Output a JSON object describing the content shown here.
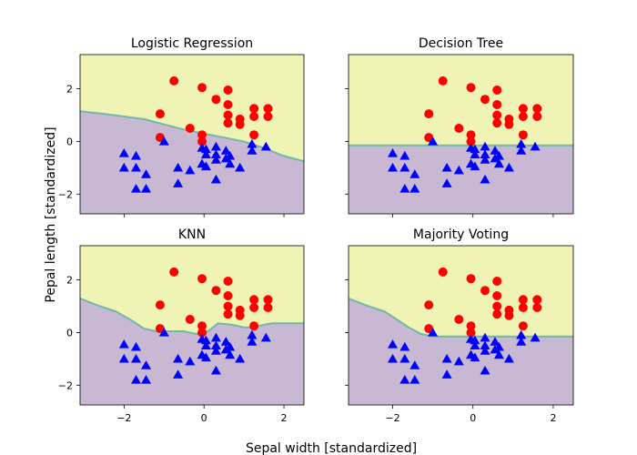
{
  "figure": {
    "xlabel": "Sepal width [standardized]",
    "ylabel": "Pepal length [standardized]"
  },
  "colors": {
    "region_class_1": "#c9b8d4",
    "region_class_0": "#eff4b5",
    "boundary_line": "#62b39e",
    "marker_class_0": "#ff0000",
    "marker_class_1": "#0000ff"
  },
  "chart_data": [
    {
      "type": "scatter",
      "title": "Logistic Regression",
      "xlim": [
        -3.1,
        2.5
      ],
      "ylim": [
        -2.75,
        3.3
      ],
      "xticks": [
        -2,
        0,
        2
      ],
      "yticks": [
        -2,
        0,
        2
      ],
      "show_x_ticklabels": false,
      "show_y_ticklabels": true,
      "boundary": [
        [
          -3.1,
          1.15
        ],
        [
          -2.5,
          1.05
        ],
        [
          -2.0,
          0.95
        ],
        [
          -1.5,
          0.85
        ],
        [
          -1.0,
          0.65
        ],
        [
          -0.5,
          0.45
        ],
        [
          0.0,
          0.3
        ],
        [
          0.5,
          0.15
        ],
        [
          1.0,
          0.0
        ],
        [
          1.5,
          -0.25
        ],
        [
          2.0,
          -0.55
        ],
        [
          2.5,
          -0.75
        ]
      ]
    },
    {
      "type": "scatter",
      "title": "Decision Tree",
      "xlim": [
        -3.1,
        2.5
      ],
      "ylim": [
        -2.75,
        3.3
      ],
      "xticks": [
        -2,
        0,
        2
      ],
      "yticks": [
        -2,
        0,
        2
      ],
      "show_x_ticklabels": false,
      "show_y_ticklabels": false,
      "boundary": [
        [
          -3.1,
          -0.15
        ],
        [
          2.5,
          -0.15
        ]
      ]
    },
    {
      "type": "scatter",
      "title": "KNN",
      "xlim": [
        -3.1,
        2.5
      ],
      "ylim": [
        -2.75,
        3.3
      ],
      "xticks": [
        -2,
        0,
        2
      ],
      "yticks": [
        -2,
        0,
        2
      ],
      "show_x_ticklabels": true,
      "show_y_ticklabels": true,
      "boundary": [
        [
          -3.1,
          1.3
        ],
        [
          -2.6,
          1.0
        ],
        [
          -2.2,
          0.8
        ],
        [
          -1.8,
          0.45
        ],
        [
          -1.5,
          0.15
        ],
        [
          -1.2,
          0.05
        ],
        [
          -0.5,
          0.05
        ],
        [
          -0.2,
          -0.05
        ],
        [
          0.1,
          0.05
        ],
        [
          0.35,
          0.35
        ],
        [
          0.7,
          0.3
        ],
        [
          1.0,
          0.2
        ],
        [
          1.2,
          0.2
        ],
        [
          1.5,
          0.3
        ],
        [
          1.7,
          0.35
        ],
        [
          2.5,
          0.35
        ]
      ]
    },
    {
      "type": "scatter",
      "title": "Majority Voting",
      "xlim": [
        -3.1,
        2.5
      ],
      "ylim": [
        -2.75,
        3.3
      ],
      "xticks": [
        -2,
        0,
        2
      ],
      "yticks": [
        -2,
        0,
        2
      ],
      "show_x_ticklabels": true,
      "show_y_ticklabels": false,
      "boundary": [
        [
          -3.1,
          1.3
        ],
        [
          -2.6,
          1.0
        ],
        [
          -2.2,
          0.8
        ],
        [
          -1.9,
          0.5
        ],
        [
          -1.6,
          0.2
        ],
        [
          -1.3,
          -0.05
        ],
        [
          -1.0,
          -0.15
        ],
        [
          2.5,
          -0.15
        ]
      ]
    }
  ],
  "points": {
    "class_0": [
      [
        -0.75,
        2.3
      ],
      [
        -0.05,
        2.05
      ],
      [
        0.3,
        1.6
      ],
      [
        0.6,
        1.95
      ],
      [
        0.6,
        1.4
      ],
      [
        0.6,
        1.0
      ],
      [
        0.6,
        0.7
      ],
      [
        0.9,
        0.85
      ],
      [
        0.9,
        0.65
      ],
      [
        1.25,
        1.25
      ],
      [
        1.25,
        0.95
      ],
      [
        1.6,
        1.25
      ],
      [
        1.6,
        0.95
      ],
      [
        -1.1,
        1.05
      ],
      [
        -1.1,
        0.15
      ],
      [
        -0.35,
        0.5
      ],
      [
        -0.05,
        0.25
      ],
      [
        -0.05,
        0.0
      ],
      [
        1.25,
        0.25
      ]
    ],
    "class_1": [
      [
        -2.0,
        -0.45
      ],
      [
        -1.7,
        -0.55
      ],
      [
        -2.0,
        -1.0
      ],
      [
        -1.7,
        -1.0
      ],
      [
        -1.45,
        -1.25
      ],
      [
        -1.7,
        -1.8
      ],
      [
        -1.45,
        -1.8
      ],
      [
        -0.65,
        -1.0
      ],
      [
        -0.35,
        -1.1
      ],
      [
        -0.65,
        -1.6
      ],
      [
        0.05,
        -0.3
      ],
      [
        0.05,
        -0.5
      ],
      [
        -0.05,
        -0.85
      ],
      [
        0.05,
        -0.95
      ],
      [
        0.3,
        -0.2
      ],
      [
        0.3,
        -0.5
      ],
      [
        0.3,
        -0.7
      ],
      [
        0.3,
        -1.45
      ],
      [
        0.55,
        -0.35
      ],
      [
        0.55,
        -0.65
      ],
      [
        0.65,
        -0.55
      ],
      [
        0.65,
        -0.85
      ],
      [
        0.9,
        -1.0
      ],
      [
        1.2,
        -0.1
      ],
      [
        1.2,
        -0.35
      ],
      [
        1.55,
        -0.2
      ],
      [
        -0.05,
        -0.25
      ],
      [
        -1.0,
        0.0
      ]
    ]
  }
}
